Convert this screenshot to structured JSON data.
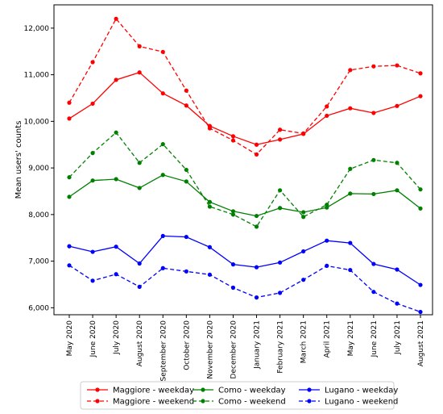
{
  "chart_data": {
    "type": "line",
    "title": "",
    "xlabel": "",
    "ylabel": "Mean users' counts",
    "ylim": [
      5850,
      12500
    ],
    "yticks": [
      "6,000",
      "7,000",
      "8,000",
      "9,000",
      "10,000",
      "11,000",
      "12,000"
    ],
    "ytick_values": [
      6000,
      7000,
      8000,
      9000,
      10000,
      11000,
      12000
    ],
    "grid": false,
    "legend_placement": "bottom-center",
    "categories": [
      "May 2020",
      "June 2020",
      "July 2020",
      "August 2020",
      "September 2020",
      "October 2020",
      "November 2020",
      "December 2020",
      "January 2021",
      "February 2021",
      "March 2021",
      "April 2021",
      "May 2021",
      "June 2021",
      "July 2021",
      "August 2021"
    ],
    "series": [
      {
        "name": "Maggiore - weekday",
        "color": "#ff0000",
        "dash": "solid",
        "values": [
          10060,
          10380,
          10890,
          11050,
          10600,
          10340,
          9900,
          9680,
          9500,
          9610,
          9730,
          10120,
          10280,
          10180,
          10330,
          10540
        ]
      },
      {
        "name": "Maggiore - weekend",
        "color": "#ff0000",
        "dash": "dashed",
        "values": [
          10400,
          11270,
          12200,
          11610,
          11490,
          10660,
          9850,
          9590,
          9290,
          9820,
          9740,
          10320,
          11100,
          11180,
          11200,
          11030
        ]
      },
      {
        "name": "Como - weekday",
        "color": "#008000",
        "dash": "solid",
        "values": [
          8380,
          8730,
          8760,
          8570,
          8850,
          8710,
          8270,
          8070,
          7970,
          8140,
          8050,
          8150,
          8450,
          8440,
          8520,
          8130
        ]
      },
      {
        "name": "Como - weekend",
        "color": "#008000",
        "dash": "dashed",
        "values": [
          8800,
          9320,
          9760,
          9110,
          9510,
          8960,
          8170,
          8000,
          7740,
          8520,
          7950,
          8210,
          8980,
          9170,
          9110,
          8540
        ]
      },
      {
        "name": "Lugano - weekday",
        "color": "#0000ff",
        "dash": "solid",
        "values": [
          7320,
          7200,
          7310,
          6950,
          7540,
          7520,
          7300,
          6930,
          6870,
          6970,
          7210,
          7440,
          7390,
          6940,
          6820,
          6490
        ]
      },
      {
        "name": "Lugano - weekend",
        "color": "#0000ff",
        "dash": "dashed",
        "values": [
          6910,
          6580,
          6720,
          6450,
          6850,
          6780,
          6710,
          6430,
          6220,
          6320,
          6600,
          6900,
          6810,
          6340,
          6090,
          5910
        ]
      }
    ]
  }
}
